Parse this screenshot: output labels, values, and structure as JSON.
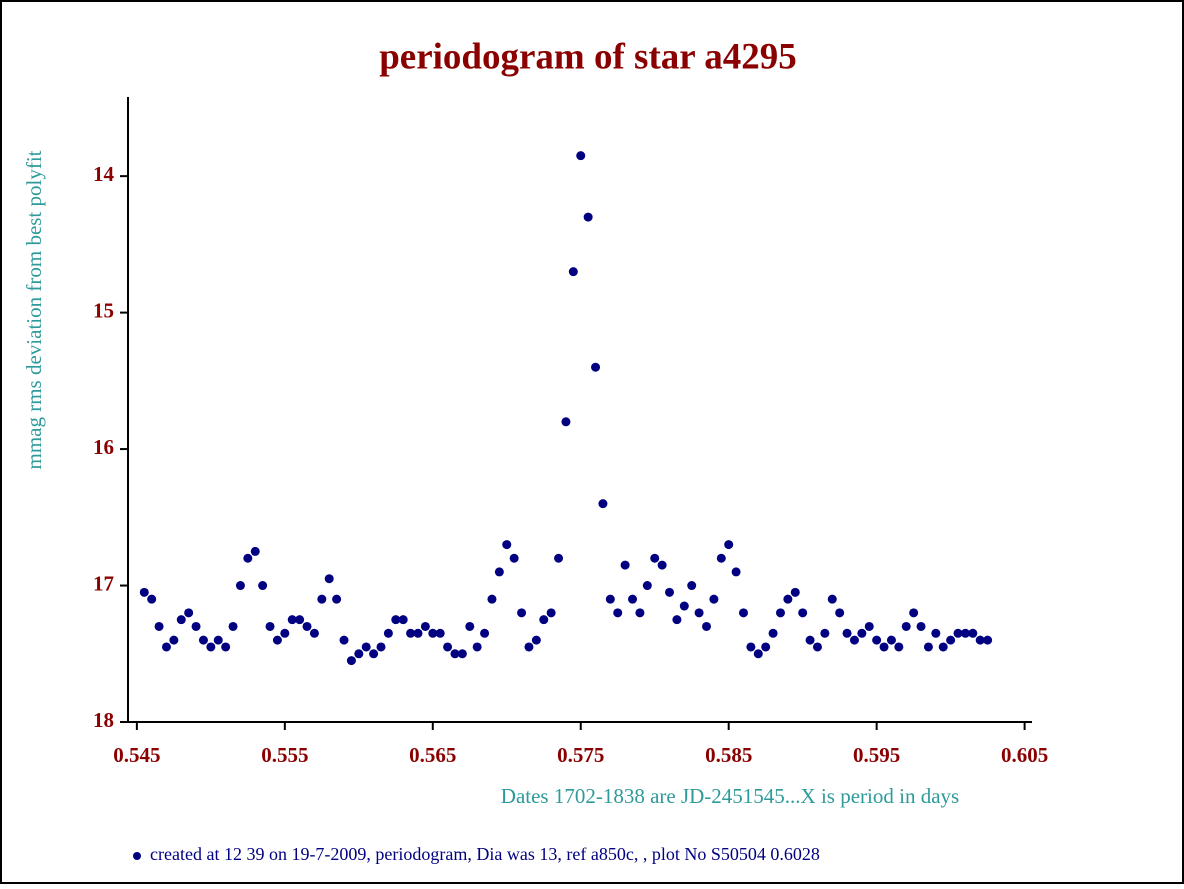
{
  "chart_data": {
    "type": "scatter",
    "title": "periodogram of star a4295",
    "y_label": "mmag rms deviation  from best polyfit",
    "x_label": "Dates  1702-1838 are JD-2451545...X is period in days",
    "footer": "created at 12 39 on 19-7-2009,  periodogram, Dia was 13, ref a850c, ,  plot No S50504 0.6028",
    "xlim": [
      0.5444,
      0.6055
    ],
    "ylim": [
      13.42,
      18
    ],
    "y_inverted": true,
    "xticks": [
      0.545,
      0.555,
      0.565,
      0.575,
      0.585,
      0.595,
      0.605
    ],
    "yticks": [
      14,
      15,
      16,
      17,
      18
    ],
    "series": [
      {
        "color": "#000080",
        "x": [
          0.5455,
          0.546,
          0.5465,
          0.547,
          0.5475,
          0.548,
          0.5485,
          0.549,
          0.5495,
          0.55,
          0.5505,
          0.551,
          0.5515,
          0.552,
          0.5525,
          0.553,
          0.5535,
          0.554,
          0.5545,
          0.555,
          0.5555,
          0.556,
          0.5565,
          0.557,
          0.5575,
          0.558,
          0.5585,
          0.559,
          0.5595,
          0.56,
          0.5605,
          0.561,
          0.5615,
          0.562,
          0.5625,
          0.563,
          0.5635,
          0.564,
          0.5645,
          0.565,
          0.5655,
          0.566,
          0.5665,
          0.567,
          0.5675,
          0.568,
          0.5685,
          0.569,
          0.5695,
          0.57,
          0.5705,
          0.571,
          0.5715,
          0.572,
          0.5725,
          0.573,
          0.5735,
          0.574,
          0.5745,
          0.575,
          0.5755,
          0.576,
          0.5765,
          0.577,
          0.5775,
          0.578,
          0.5785,
          0.579,
          0.5795,
          0.58,
          0.5805,
          0.581,
          0.5815,
          0.582,
          0.5825,
          0.583,
          0.5835,
          0.584,
          0.5845,
          0.585,
          0.5855,
          0.586,
          0.5865,
          0.587,
          0.5875,
          0.588,
          0.5885,
          0.589,
          0.5895,
          0.59,
          0.5905,
          0.591,
          0.5915,
          0.592,
          0.5925,
          0.593,
          0.5935,
          0.594,
          0.5945,
          0.595,
          0.5955,
          0.596,
          0.5965,
          0.597,
          0.5975,
          0.598,
          0.5985,
          0.599,
          0.5995,
          0.6,
          0.6005,
          0.601,
          0.6015,
          0.602,
          0.6025
        ],
        "values": [
          17.05,
          17.1,
          17.3,
          17.45,
          17.4,
          17.25,
          17.2,
          17.3,
          17.4,
          17.45,
          17.4,
          17.45,
          17.3,
          17.0,
          16.8,
          16.75,
          17.0,
          17.3,
          17.4,
          17.35,
          17.25,
          17.25,
          17.3,
          17.35,
          17.1,
          16.95,
          17.1,
          17.4,
          17.55,
          17.5,
          17.45,
          17.5,
          17.45,
          17.35,
          17.25,
          17.25,
          17.35,
          17.35,
          17.3,
          17.35,
          17.35,
          17.45,
          17.5,
          17.5,
          17.3,
          17.45,
          17.35,
          17.1,
          16.9,
          16.7,
          16.8,
          17.2,
          17.45,
          17.4,
          17.25,
          17.2,
          16.8,
          15.8,
          14.7,
          13.85,
          14.3,
          15.4,
          16.4,
          17.1,
          17.2,
          16.85,
          17.1,
          17.2,
          17.0,
          16.8,
          16.85,
          17.05,
          17.25,
          17.15,
          17.0,
          17.2,
          17.3,
          17.1,
          16.8,
          16.7,
          16.9,
          17.2,
          17.45,
          17.5,
          17.45,
          17.35,
          17.2,
          17.1,
          17.05,
          17.2,
          17.4,
          17.45,
          17.35,
          17.1,
          17.2,
          17.35,
          17.4,
          17.35,
          17.3,
          17.4,
          17.45,
          17.4,
          17.45,
          17.3,
          17.2,
          17.3,
          17.45,
          17.35,
          17.45,
          17.4,
          17.35,
          17.35,
          17.35,
          17.4,
          17.4
        ]
      }
    ]
  }
}
